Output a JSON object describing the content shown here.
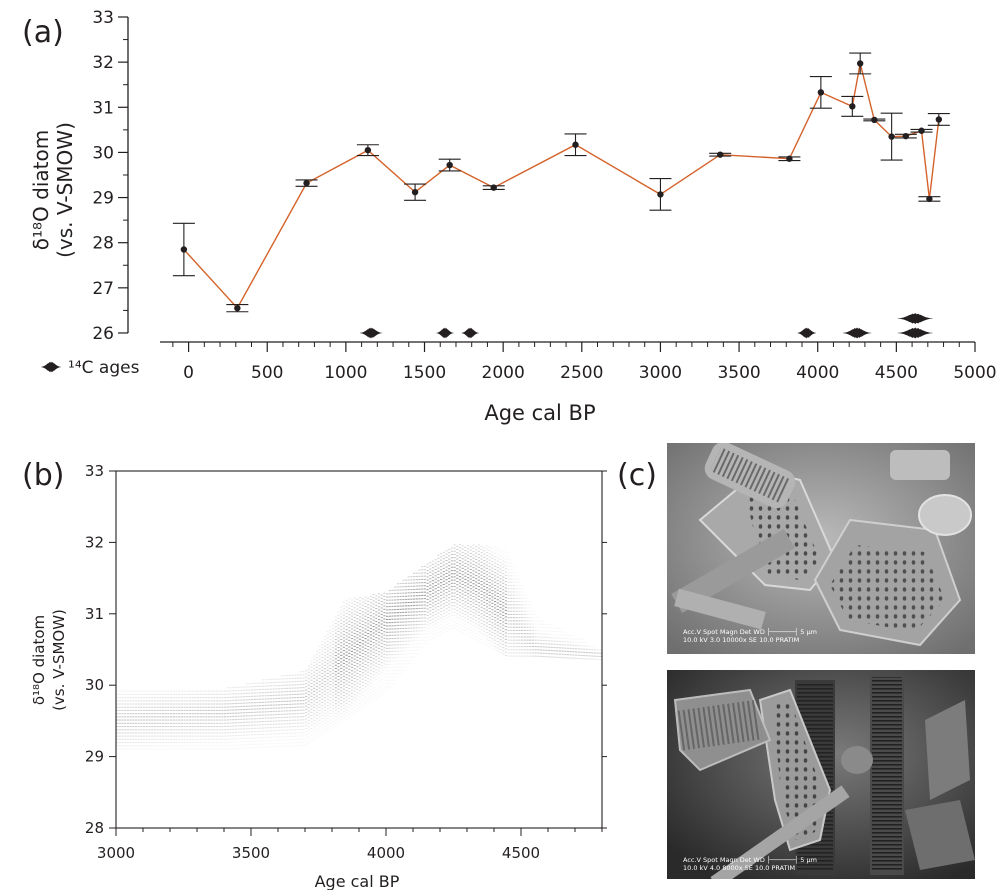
{
  "panel_labels": {
    "a": "(a)",
    "b": "(b)",
    "c": "(c)"
  },
  "colors": {
    "line": "#d4622a",
    "ink": "#231f20",
    "band": "#5a5a5a",
    "sem_light": "#8e8e8e",
    "sem_dark": "#3d3d3d"
  },
  "legend": {
    "symbol_icon": "c14-age-distribution-icon",
    "label": "¹⁴C ages"
  },
  "chart_data": [
    {
      "panel": "a",
      "type": "line",
      "title": "",
      "xlabel": "Age cal BP",
      "ylabel_line1": "δ¹⁸O diatom",
      "ylabel_line2": "(vs. V-SMOW)",
      "xlim": [
        -150,
        5000
      ],
      "ylim": [
        25.8,
        33
      ],
      "xticks": [
        0,
        500,
        1000,
        1500,
        2000,
        2500,
        3000,
        3500,
        4000,
        4500,
        5000
      ],
      "yticks": [
        26,
        27,
        28,
        29,
        30,
        31,
        32,
        33
      ],
      "series": [
        {
          "points": [
            {
              "x": -30,
              "y": 27.85,
              "err": 0.58
            },
            {
              "x": 310,
              "y": 26.55,
              "err": 0.08
            },
            {
              "x": 750,
              "y": 29.32,
              "err": 0.07
            },
            {
              "x": 1140,
              "y": 30.05,
              "err": 0.12
            },
            {
              "x": 1440,
              "y": 29.12,
              "err": 0.18
            },
            {
              "x": 1660,
              "y": 29.72,
              "err": 0.13
            },
            {
              "x": 1940,
              "y": 29.22,
              "err": 0.04
            },
            {
              "x": 2460,
              "y": 30.17,
              "err": 0.24
            },
            {
              "x": 3000,
              "y": 29.07,
              "err": 0.35
            },
            {
              "x": 3380,
              "y": 29.95,
              "err": 0.03
            },
            {
              "x": 3820,
              "y": 29.86,
              "err": 0.04
            },
            {
              "x": 4020,
              "y": 31.33,
              "err": 0.35
            },
            {
              "x": 4220,
              "y": 31.02,
              "err": 0.22
            },
            {
              "x": 4270,
              "y": 31.97,
              "err": 0.23
            },
            {
              "x": 4360,
              "y": 30.72,
              "err": 0.02
            },
            {
              "x": 4470,
              "y": 30.35,
              "err": 0.52
            },
            {
              "x": 4560,
              "y": 30.36,
              "err": 0.04
            },
            {
              "x": 4660,
              "y": 30.48,
              "err": 0.03
            },
            {
              "x": 4710,
              "y": 28.97,
              "err": 0.05
            },
            {
              "x": 4770,
              "y": 30.73,
              "err": 0.13
            }
          ]
        }
      ],
      "age_distributions": [
        {
          "center": 1160,
          "spread": 70,
          "y": 26.0
        },
        {
          "center": 1630,
          "spread": 55,
          "y": 26.0
        },
        {
          "center": 1790,
          "spread": 55,
          "y": 26.0
        },
        {
          "center": 3930,
          "spread": 60,
          "y": 26.0
        },
        {
          "center": 4250,
          "spread": 90,
          "y": 26.0
        },
        {
          "center": 4620,
          "spread": 110,
          "y": 26.0
        },
        {
          "center": 4620,
          "spread": 110,
          "y": 26.32
        }
      ]
    },
    {
      "panel": "b",
      "type": "heatmap",
      "title": "",
      "xlabel": "Age cal BP",
      "ylabel_line1": "δ¹⁸O diatom",
      "ylabel_line2": "(vs. V-SMOW)",
      "xlim": [
        3000,
        4800
      ],
      "ylim": [
        28,
        33
      ],
      "xticks": [
        3000,
        3500,
        4000,
        4500
      ],
      "yticks": [
        28,
        29,
        30,
        31,
        32,
        33
      ],
      "density_envelope": [
        {
          "x": 3000,
          "lo": 29.1,
          "hi": 29.95,
          "mid": 29.5
        },
        {
          "x": 3400,
          "lo": 29.1,
          "hi": 29.95,
          "mid": 29.6
        },
        {
          "x": 3700,
          "lo": 29.15,
          "hi": 30.2,
          "mid": 29.8
        },
        {
          "x": 3850,
          "lo": 29.5,
          "hi": 31.2,
          "mid": 30.4
        },
        {
          "x": 4000,
          "lo": 29.9,
          "hi": 31.3,
          "mid": 30.9
        },
        {
          "x": 4150,
          "lo": 30.6,
          "hi": 31.7,
          "mid": 31.3
        },
        {
          "x": 4250,
          "lo": 30.8,
          "hi": 31.97,
          "mid": 31.55
        },
        {
          "x": 4350,
          "lo": 30.6,
          "hi": 31.97,
          "mid": 31.4
        },
        {
          "x": 4450,
          "lo": 30.4,
          "hi": 31.9,
          "mid": 31.0
        },
        {
          "x": 4560,
          "lo": 30.4,
          "hi": 30.95,
          "mid": 30.5
        },
        {
          "x": 4800,
          "lo": 30.35,
          "hi": 30.5,
          "mid": 30.42
        }
      ]
    }
  ],
  "sem_images": [
    {
      "id": "top",
      "caption": "Acc.V   Spot Magn    Det   WD  ├──────┤  5 µm\n10.0 kV 3.0   10000x   SE   10.0  PRATIM"
    },
    {
      "id": "bottom",
      "caption": "Acc.V   Spot Magn    Det   WD  ├──────┤  5 µm\n10.0 kV 4.0   8000x    SE   10.0  PRATIM"
    }
  ]
}
